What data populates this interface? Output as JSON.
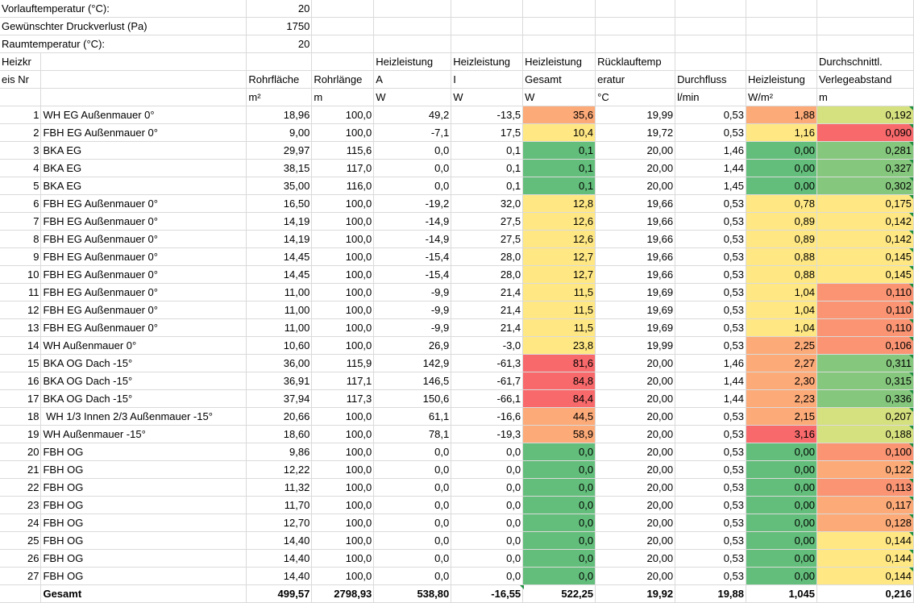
{
  "params": [
    {
      "label": "Vorlauftemperatur (°C):",
      "value": "20"
    },
    {
      "label": "Gewünschter Druckverlust (Pa)",
      "value": "1750"
    },
    {
      "label": "Raumtemperatur (°C):",
      "value": "20"
    }
  ],
  "header": {
    "row1": [
      "Heizkr",
      "",
      "",
      "",
      "Heizleistung",
      "Heizleistung",
      "Heizleistung",
      "Rücklauftemp",
      "",
      "",
      "Durchschnittl."
    ],
    "row2": [
      "eis Nr",
      "",
      "Rohrfläche",
      "Rohrlänge",
      "A",
      "I",
      "Gesamt",
      "eratur",
      "Durchfluss",
      "Heizleistung",
      "Verlegeabstand"
    ],
    "units": [
      "",
      "",
      "m²",
      "m",
      "W",
      "W",
      "W",
      "°C",
      "l/min",
      "W/m²",
      "m"
    ]
  },
  "rows": [
    {
      "nr": "1",
      "name": "WH EG Außenmauer 0°",
      "flaeche": "18,96",
      "laenge": "100,0",
      "a": "49,2",
      "i": "-13,5",
      "gesamt": "35,6",
      "ruecklauf": "19,99",
      "durchfluss": "0,53",
      "wm2": "1,88",
      "abstand": "0,192"
    },
    {
      "nr": "2",
      "name": "FBH EG Außenmauer 0°",
      "flaeche": "9,00",
      "laenge": "100,0",
      "a": "-7,1",
      "i": "17,5",
      "gesamt": "10,4",
      "ruecklauf": "19,72",
      "durchfluss": "0,53",
      "wm2": "1,16",
      "abstand": "0,090"
    },
    {
      "nr": "3",
      "name": "BKA EG",
      "flaeche": "29,97",
      "laenge": "115,6",
      "a": "0,0",
      "i": "0,1",
      "gesamt": "0,1",
      "ruecklauf": "20,00",
      "durchfluss": "1,46",
      "wm2": "0,00",
      "abstand": "0,281"
    },
    {
      "nr": "4",
      "name": "BKA EG",
      "flaeche": "38,15",
      "laenge": "117,0",
      "a": "0,0",
      "i": "0,1",
      "gesamt": "0,1",
      "ruecklauf": "20,00",
      "durchfluss": "1,44",
      "wm2": "0,00",
      "abstand": "0,327"
    },
    {
      "nr": "5",
      "name": "BKA EG",
      "flaeche": "35,00",
      "laenge": "116,0",
      "a": "0,0",
      "i": "0,1",
      "gesamt": "0,1",
      "ruecklauf": "20,00",
      "durchfluss": "1,45",
      "wm2": "0,00",
      "abstand": "0,302"
    },
    {
      "nr": "6",
      "name": "FBH EG Außenmauer 0°",
      "flaeche": "16,50",
      "laenge": "100,0",
      "a": "-19,2",
      "i": "32,0",
      "gesamt": "12,8",
      "ruecklauf": "19,66",
      "durchfluss": "0,53",
      "wm2": "0,78",
      "abstand": "0,175"
    },
    {
      "nr": "7",
      "name": "FBH EG Außenmauer 0°",
      "flaeche": "14,19",
      "laenge": "100,0",
      "a": "-14,9",
      "i": "27,5",
      "gesamt": "12,6",
      "ruecklauf": "19,66",
      "durchfluss": "0,53",
      "wm2": "0,89",
      "abstand": "0,142"
    },
    {
      "nr": "8",
      "name": "FBH EG Außenmauer 0°",
      "flaeche": "14,19",
      "laenge": "100,0",
      "a": "-14,9",
      "i": "27,5",
      "gesamt": "12,6",
      "ruecklauf": "19,66",
      "durchfluss": "0,53",
      "wm2": "0,89",
      "abstand": "0,142"
    },
    {
      "nr": "9",
      "name": "FBH EG Außenmauer 0°",
      "flaeche": "14,45",
      "laenge": "100,0",
      "a": "-15,4",
      "i": "28,0",
      "gesamt": "12,7",
      "ruecklauf": "19,66",
      "durchfluss": "0,53",
      "wm2": "0,88",
      "abstand": "0,145"
    },
    {
      "nr": "10",
      "name": "FBH EG Außenmauer 0°",
      "flaeche": "14,45",
      "laenge": "100,0",
      "a": "-15,4",
      "i": "28,0",
      "gesamt": "12,7",
      "ruecklauf": "19,66",
      "durchfluss": "0,53",
      "wm2": "0,88",
      "abstand": "0,145"
    },
    {
      "nr": "11",
      "name": "FBH EG Außenmauer 0°",
      "flaeche": "11,00",
      "laenge": "100,0",
      "a": "-9,9",
      "i": "21,4",
      "gesamt": "11,5",
      "ruecklauf": "19,69",
      "durchfluss": "0,53",
      "wm2": "1,04",
      "abstand": "0,110"
    },
    {
      "nr": "12",
      "name": "FBH EG Außenmauer 0°",
      "flaeche": "11,00",
      "laenge": "100,0",
      "a": "-9,9",
      "i": "21,4",
      "gesamt": "11,5",
      "ruecklauf": "19,69",
      "durchfluss": "0,53",
      "wm2": "1,04",
      "abstand": "0,110"
    },
    {
      "nr": "13",
      "name": "FBH EG Außenmauer 0°",
      "flaeche": "11,00",
      "laenge": "100,0",
      "a": "-9,9",
      "i": "21,4",
      "gesamt": "11,5",
      "ruecklauf": "19,69",
      "durchfluss": "0,53",
      "wm2": "1,04",
      "abstand": "0,110"
    },
    {
      "nr": "14",
      "name": "WH Außenmauer 0°",
      "flaeche": "10,60",
      "laenge": "100,0",
      "a": "26,9",
      "i": "-3,0",
      "gesamt": "23,8",
      "ruecklauf": "19,99",
      "durchfluss": "0,53",
      "wm2": "2,25",
      "abstand": "0,106"
    },
    {
      "nr": "15",
      "name": "BKA OG Dach -15°",
      "flaeche": "36,00",
      "laenge": "115,9",
      "a": "142,9",
      "i": "-61,3",
      "gesamt": "81,6",
      "ruecklauf": "20,00",
      "durchfluss": "1,46",
      "wm2": "2,27",
      "abstand": "0,311"
    },
    {
      "nr": "16",
      "name": "BKA OG Dach -15°",
      "flaeche": "36,91",
      "laenge": "117,1",
      "a": "146,5",
      "i": "-61,7",
      "gesamt": "84,8",
      "ruecklauf": "20,00",
      "durchfluss": "1,44",
      "wm2": "2,30",
      "abstand": "0,315"
    },
    {
      "nr": "17",
      "name": "BKA OG Dach -15°",
      "flaeche": "37,94",
      "laenge": "117,3",
      "a": "150,6",
      "i": "-66,1",
      "gesamt": "84,4",
      "ruecklauf": "20,00",
      "durchfluss": "1,44",
      "wm2": "2,23",
      "abstand": "0,336"
    },
    {
      "nr": "18",
      "name": " WH 1/3 Innen 2/3 Außenmauer -15°",
      "flaeche": "20,66",
      "laenge": "100,0",
      "a": "61,1",
      "i": "-16,6",
      "gesamt": "44,5",
      "ruecklauf": "20,00",
      "durchfluss": "0,53",
      "wm2": "2,15",
      "abstand": "0,207"
    },
    {
      "nr": "19",
      "name": "WH Außenmauer -15°",
      "flaeche": "18,60",
      "laenge": "100,0",
      "a": "78,1",
      "i": "-19,3",
      "gesamt": "58,9",
      "ruecklauf": "20,00",
      "durchfluss": "0,53",
      "wm2": "3,16",
      "abstand": "0,188"
    },
    {
      "nr": "20",
      "name": "FBH OG",
      "flaeche": "9,86",
      "laenge": "100,0",
      "a": "0,0",
      "i": "0,0",
      "gesamt": "0,0",
      "ruecklauf": "20,00",
      "durchfluss": "0,53",
      "wm2": "0,00",
      "abstand": "0,100"
    },
    {
      "nr": "21",
      "name": "FBH OG",
      "flaeche": "12,22",
      "laenge": "100,0",
      "a": "0,0",
      "i": "0,0",
      "gesamt": "0,0",
      "ruecklauf": "20,00",
      "durchfluss": "0,53",
      "wm2": "0,00",
      "abstand": "0,122"
    },
    {
      "nr": "22",
      "name": "FBH OG",
      "flaeche": "11,32",
      "laenge": "100,0",
      "a": "0,0",
      "i": "0,0",
      "gesamt": "0,0",
      "ruecklauf": "20,00",
      "durchfluss": "0,53",
      "wm2": "0,00",
      "abstand": "0,113"
    },
    {
      "nr": "23",
      "name": "FBH OG",
      "flaeche": "11,70",
      "laenge": "100,0",
      "a": "0,0",
      "i": "0,0",
      "gesamt": "0,0",
      "ruecklauf": "20,00",
      "durchfluss": "0,53",
      "wm2": "0,00",
      "abstand": "0,117"
    },
    {
      "nr": "24",
      "name": "FBH OG",
      "flaeche": "12,70",
      "laenge": "100,0",
      "a": "0,0",
      "i": "0,0",
      "gesamt": "0,0",
      "ruecklauf": "20,00",
      "durchfluss": "0,53",
      "wm2": "0,00",
      "abstand": "0,128"
    },
    {
      "nr": "25",
      "name": "FBH OG",
      "flaeche": "14,40",
      "laenge": "100,0",
      "a": "0,0",
      "i": "0,0",
      "gesamt": "0,0",
      "ruecklauf": "20,00",
      "durchfluss": "0,53",
      "wm2": "0,00",
      "abstand": "0,144"
    },
    {
      "nr": "26",
      "name": "FBH OG",
      "flaeche": "14,40",
      "laenge": "100,0",
      "a": "0,0",
      "i": "0,0",
      "gesamt": "0,0",
      "ruecklauf": "20,00",
      "durchfluss": "0,53",
      "wm2": "0,00",
      "abstand": "0,144"
    },
    {
      "nr": "27",
      "name": "FBH OG",
      "flaeche": "14,40",
      "laenge": "100,0",
      "a": "0,0",
      "i": "0,0",
      "gesamt": "0,0",
      "ruecklauf": "20,00",
      "durchfluss": "0,53",
      "wm2": "0,00",
      "abstand": "0,144"
    }
  ],
  "total": {
    "label": "Gesamt",
    "flaeche": "499,57",
    "laenge": "2798,93",
    "a": "538,80",
    "i": "-16,55",
    "gesamt": "522,25",
    "ruecklauf": "19,92",
    "durchfluss": "19,88",
    "wm2": "1,045",
    "abstand": "0,216"
  },
  "colors": {
    "green_dark": "#63be7b",
    "green_mid": "#85c87d",
    "yellow": "#ffe883",
    "orange": "#fcaa78",
    "red": "#f8696b",
    "grid": "#dadada",
    "flag": "#1f8f3f"
  }
}
